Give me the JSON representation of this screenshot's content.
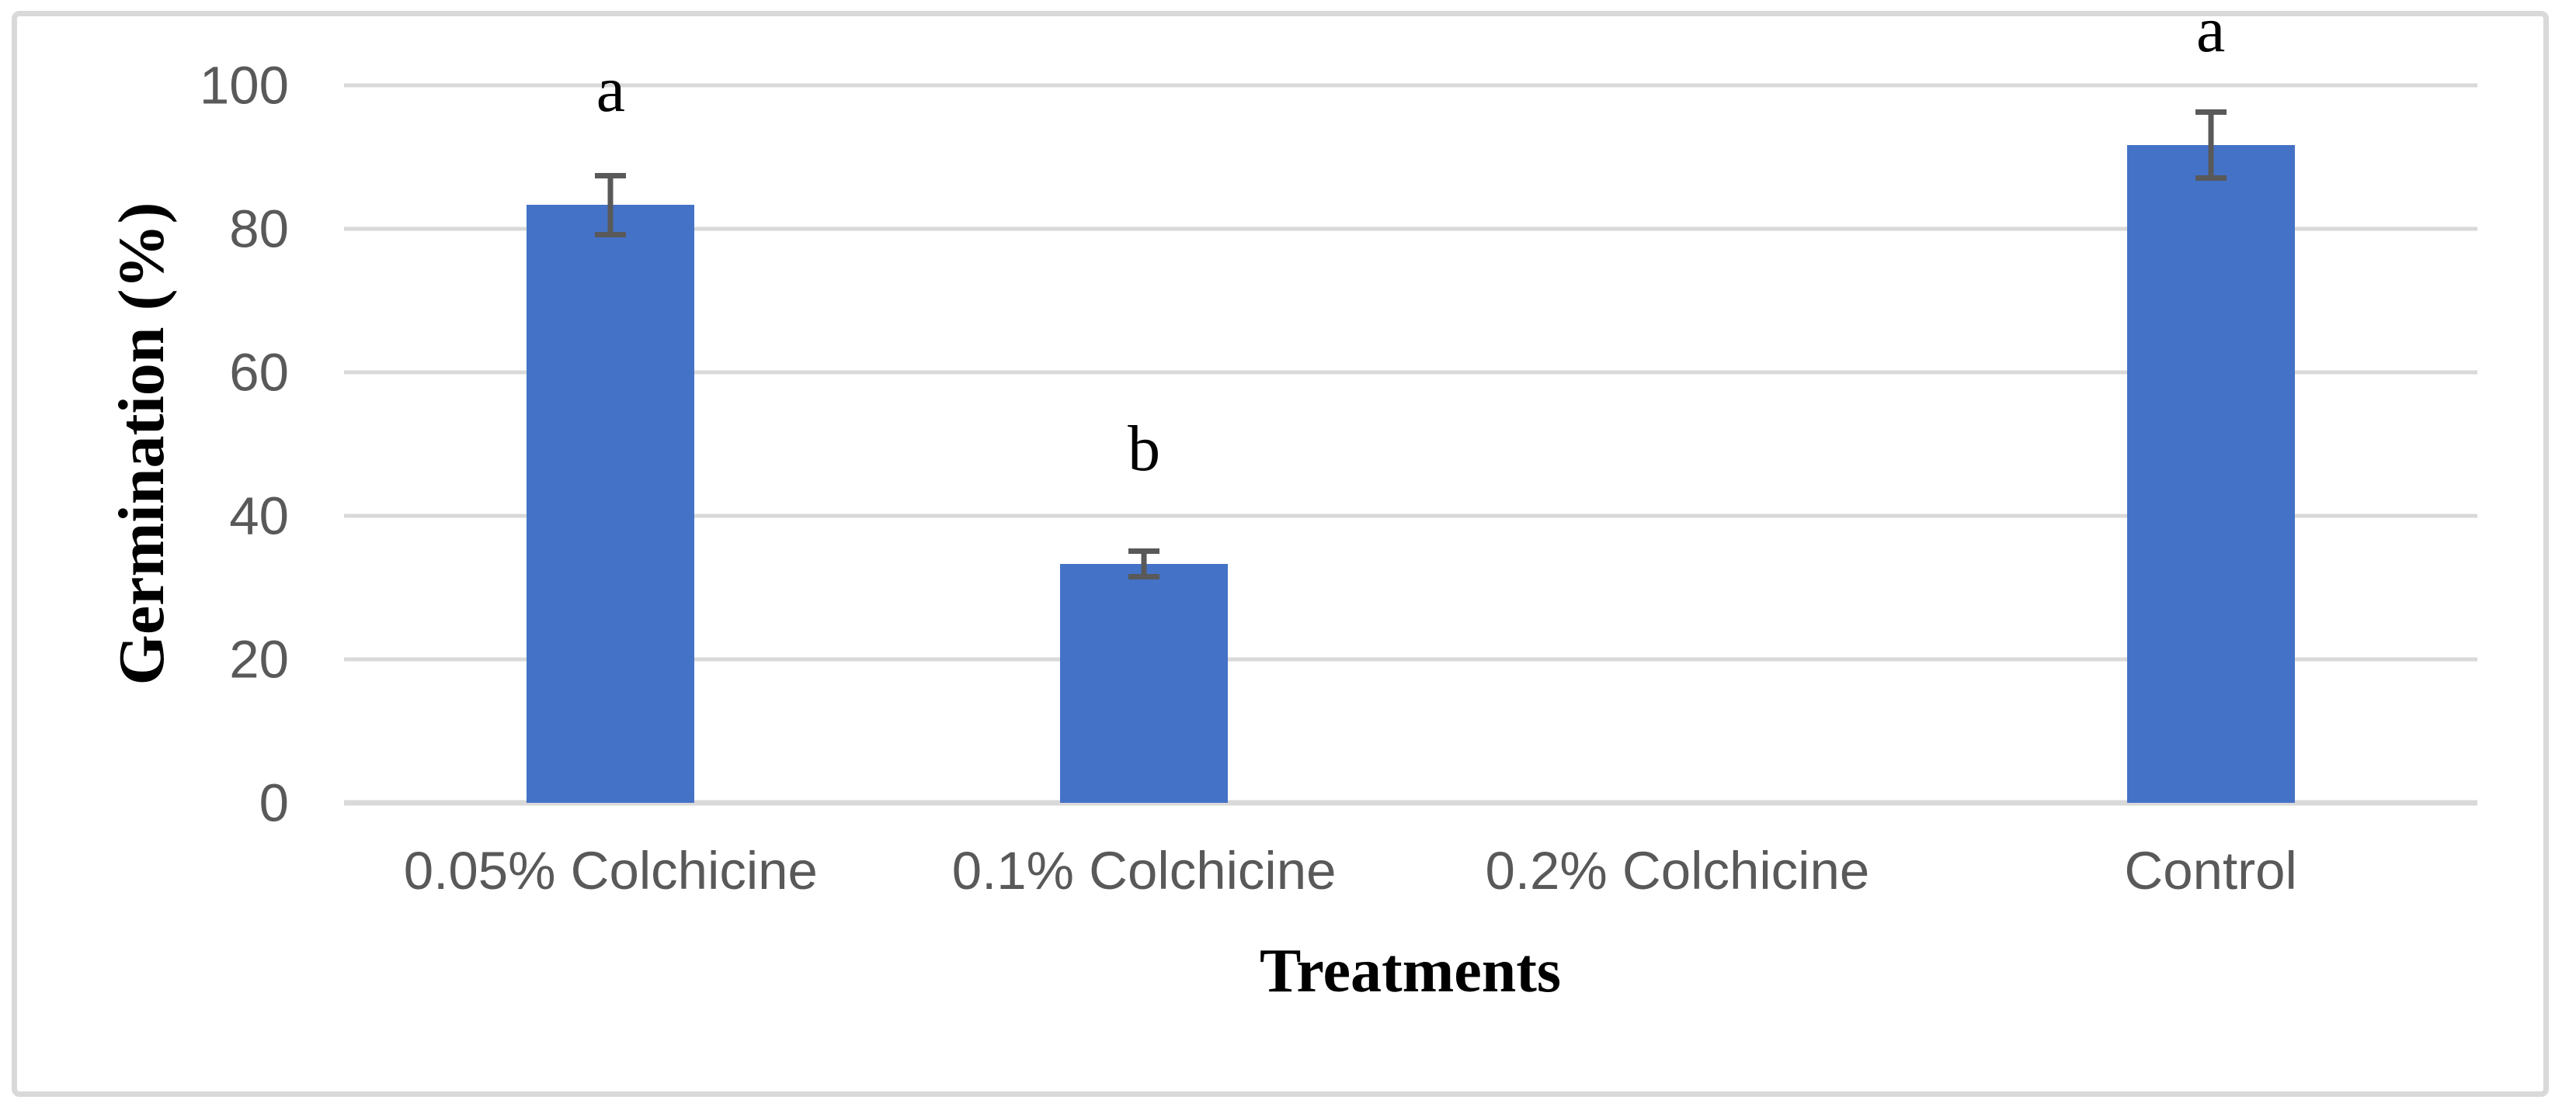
{
  "figure": {
    "background_color": "#ffffff",
    "border_color": "#d9d9d9"
  },
  "chart_data": {
    "type": "bar",
    "title": "",
    "xlabel": "Treatments",
    "ylabel": "Germination (%)",
    "categories": [
      "0.05% Colchicine",
      "0.1% Colchicine",
      "0.2% Colchicine",
      "Control"
    ],
    "values": [
      83.3,
      33.3,
      0,
      91.7
    ],
    "errors": [
      4.1,
      1.8,
      0,
      4.6
    ],
    "sig_letters": [
      "a",
      "b",
      "",
      "a"
    ],
    "yticks": [
      0,
      20,
      40,
      60,
      80,
      100
    ],
    "ylim": [
      0,
      100
    ],
    "grid": true,
    "legend": "none",
    "bar_color": "#4472c6",
    "gridline_color": "#d9d9d9",
    "axis_line_color": "#d9d9d9",
    "tick_label_color": "#595959",
    "category_label_color": "#595959",
    "error_bar_color": "#595959",
    "letter_color": "#000000"
  }
}
